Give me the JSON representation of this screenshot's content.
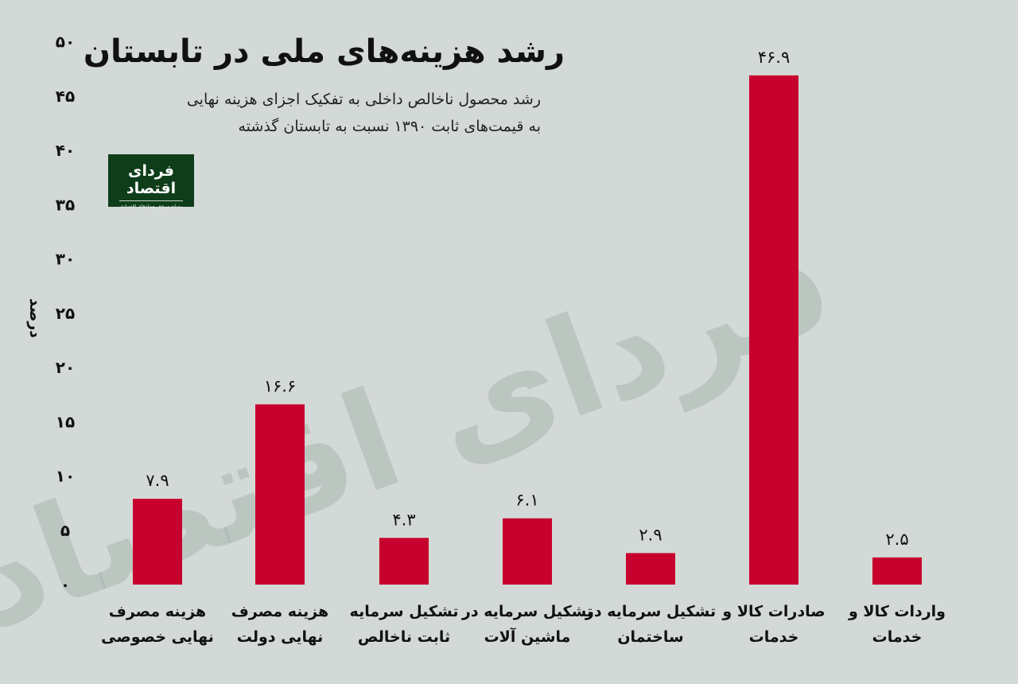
{
  "title": "رشد هزینه‌های ملی در تابستان",
  "subtitle_line1": "رشد محصول ناخالص داخلی به تفکیک اجزای هزینه نهایی",
  "subtitle_line2": "به قیمت‌های ثابت ۱۳۹۰ نسبت به تابستان گذشته",
  "logo": {
    "name": "فردای اقتصاد",
    "tagline": "رسانه مرجع رویدادهای اقتصادی"
  },
  "watermark": "فردای اقتصاد",
  "colors": {
    "background": "#d3d9d6",
    "bar": "#c8002d",
    "text": "#111111",
    "logo_bg": "#0f3d1a"
  },
  "chart_data": {
    "type": "bar",
    "ylabel": "درصد",
    "ylim": [
      0,
      50
    ],
    "yticks": [
      "۰",
      "۵",
      "۱۰",
      "۱۵",
      "۲۰",
      "۲۵",
      "۳۰",
      "۳۵",
      "۴۰",
      "۴۵",
      "۵۰"
    ],
    "grid": false,
    "categories": [
      [
        "هزینه مصرف",
        "نهایی خصوصی"
      ],
      [
        "هزینه مصرف",
        "نهایی دولت"
      ],
      [
        "تشکیل سرمایه",
        "ثابت ناخالص"
      ],
      [
        "تشکیل سرمایه در",
        "ماشین آلات"
      ],
      [
        "تشکیل سرمایه در",
        "ساختمان"
      ],
      [
        "صادرات کالا و",
        "خدمات"
      ],
      [
        "واردات کالا و",
        "خدمات"
      ]
    ],
    "values": [
      7.9,
      16.6,
      4.3,
      6.1,
      2.9,
      46.9,
      2.5
    ],
    "value_labels": [
      "۷.۹",
      "۱۶.۶",
      "۴.۳",
      "۶.۱",
      "۲.۹",
      "۴۶.۹",
      "۲.۵"
    ]
  }
}
